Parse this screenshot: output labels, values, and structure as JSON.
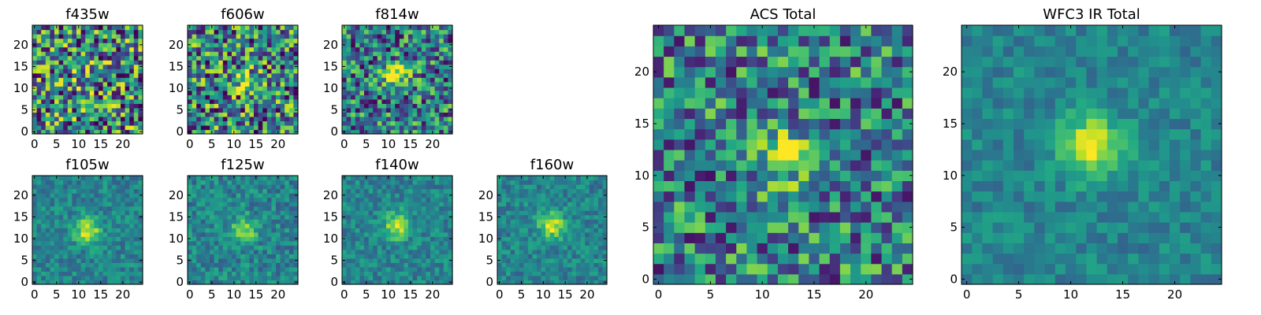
{
  "chart_data": [
    {
      "type": "heatmap",
      "title": "f435w",
      "colormap": "viridis",
      "grid_size": 25,
      "xlim": [
        0,
        24
      ],
      "ylim": [
        0,
        24
      ],
      "xticks": [
        "0",
        "5",
        "10",
        "15",
        "20"
      ],
      "yticks": [
        "0",
        "5",
        "10",
        "15",
        "20"
      ],
      "source_center": [
        12,
        12
      ],
      "source_strength": 0.2,
      "noise_level": 0.55
    },
    {
      "type": "heatmap",
      "title": "f606w",
      "colormap": "viridis",
      "grid_size": 25,
      "xlim": [
        0,
        24
      ],
      "ylim": [
        0,
        24
      ],
      "xticks": [
        "0",
        "5",
        "10",
        "15",
        "20"
      ],
      "yticks": [
        "0",
        "5",
        "10",
        "15",
        "20"
      ],
      "source_center": [
        12,
        12
      ],
      "source_strength": 0.3,
      "noise_level": 0.55
    },
    {
      "type": "heatmap",
      "title": "f814w",
      "colormap": "viridis",
      "grid_size": 25,
      "xlim": [
        0,
        24
      ],
      "ylim": [
        0,
        24
      ],
      "xticks": [
        "0",
        "5",
        "10",
        "15",
        "20"
      ],
      "yticks": [
        "0",
        "5",
        "10",
        "15",
        "20"
      ],
      "source_center": [
        12,
        13
      ],
      "source_strength": 0.5,
      "noise_level": 0.5
    },
    {
      "type": "heatmap",
      "title": "f105w",
      "colormap": "viridis",
      "grid_size": 25,
      "xlim": [
        0,
        24
      ],
      "ylim": [
        0,
        24
      ],
      "xticks": [
        "0",
        "5",
        "10",
        "15",
        "20"
      ],
      "yticks": [
        "0",
        "5",
        "10",
        "15",
        "20"
      ],
      "source_center": [
        12,
        12
      ],
      "source_strength": 0.9,
      "noise_level": 0.3
    },
    {
      "type": "heatmap",
      "title": "f125w",
      "colormap": "viridis",
      "grid_size": 25,
      "xlim": [
        0,
        24
      ],
      "ylim": [
        0,
        24
      ],
      "xticks": [
        "0",
        "5",
        "10",
        "15",
        "20"
      ],
      "yticks": [
        "0",
        "5",
        "10",
        "15",
        "20"
      ],
      "source_center": [
        12,
        12
      ],
      "source_strength": 0.8,
      "noise_level": 0.35
    },
    {
      "type": "heatmap",
      "title": "f140w",
      "colormap": "viridis",
      "grid_size": 25,
      "xlim": [
        0,
        24
      ],
      "ylim": [
        0,
        24
      ],
      "xticks": [
        "0",
        "5",
        "10",
        "15",
        "20"
      ],
      "yticks": [
        "0",
        "5",
        "10",
        "15",
        "20"
      ],
      "source_center": [
        12,
        13
      ],
      "source_strength": 0.9,
      "noise_level": 0.3
    },
    {
      "type": "heatmap",
      "title": "f160w",
      "colormap": "viridis",
      "grid_size": 25,
      "xlim": [
        0,
        24
      ],
      "ylim": [
        0,
        24
      ],
      "xticks": [
        "0",
        "5",
        "10",
        "15",
        "20"
      ],
      "yticks": [
        "0",
        "5",
        "10",
        "15",
        "20"
      ],
      "source_center": [
        12,
        13
      ],
      "source_strength": 0.9,
      "noise_level": 0.3
    },
    {
      "type": "heatmap",
      "title": "ACS Total",
      "colormap": "viridis",
      "grid_size": 25,
      "xlim": [
        0,
        24
      ],
      "ylim": [
        0,
        24
      ],
      "xticks": [
        "0",
        "5",
        "10",
        "15",
        "20"
      ],
      "yticks": [
        "0",
        "5",
        "10",
        "15",
        "20"
      ],
      "source_center": [
        12,
        12
      ],
      "source_strength": 0.4,
      "noise_level": 0.45
    },
    {
      "type": "heatmap",
      "title": "WFC3 IR Total",
      "colormap": "viridis",
      "grid_size": 25,
      "xlim": [
        0,
        24
      ],
      "ylim": [
        0,
        24
      ],
      "xticks": [
        "0",
        "5",
        "10",
        "15",
        "20"
      ],
      "yticks": [
        "0",
        "5",
        "10",
        "15",
        "20"
      ],
      "source_center": [
        12,
        13
      ],
      "source_strength": 1.0,
      "noise_level": 0.25
    }
  ]
}
